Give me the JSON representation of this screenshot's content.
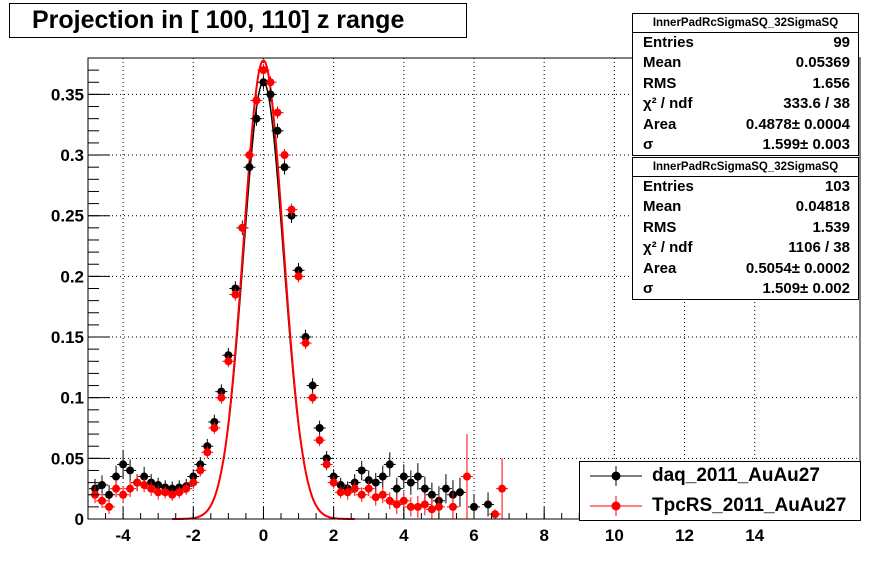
{
  "title": "Projection in [ 100, 110] z range",
  "stats_boxes": [
    {
      "header": "InnerPadRcSigmaSQ_32SigmaSQ",
      "rows": [
        {
          "key": "Entries",
          "value": "99"
        },
        {
          "key": "Mean",
          "value": "0.05369"
        },
        {
          "key": "RMS",
          "value": "1.656"
        },
        {
          "key": "χ² / ndf",
          "value": "333.6 / 38"
        },
        {
          "key": "Area",
          "value": "0.4878± 0.0004"
        },
        {
          "key": "σ",
          "value": "1.599± 0.003"
        }
      ]
    },
    {
      "header": "InnerPadRcSigmaSQ_32SigmaSQ",
      "rows": [
        {
          "key": "Entries",
          "value": "103"
        },
        {
          "key": "Mean",
          "value": "0.04818"
        },
        {
          "key": "RMS",
          "value": "1.539"
        },
        {
          "key": "χ² / ndf",
          "value": "1106 / 38"
        },
        {
          "key": "Area",
          "value": "0.5054± 0.0002"
        },
        {
          "key": "σ",
          "value": "1.509± 0.002"
        }
      ]
    }
  ],
  "chart_data": {
    "type": "scatter",
    "title": "Projection in [ 100, 110] z range",
    "xlim": [
      -5,
      17
    ],
    "ylim": [
      0,
      0.38
    ],
    "grid": true,
    "legend_position": "bottom-right",
    "x_ticks": [
      -4,
      -2,
      0,
      2,
      4,
      6,
      8,
      10,
      12,
      14
    ],
    "y_ticks": [
      0,
      0.05,
      0.1,
      0.15,
      0.2,
      0.25,
      0.3,
      0.35
    ],
    "y_tick_labels": [
      "0",
      "0.05",
      "0.1",
      "0.15",
      "0.2",
      "0.25",
      "0.3",
      "0.35"
    ],
    "series": [
      {
        "name": "daq_2011_AuAu27",
        "color": "#000000",
        "fit_area": 0.4878,
        "fit_sigma": 1.599,
        "points": [
          [
            -4.8,
            0.025,
            0.008
          ],
          [
            -4.6,
            0.028,
            0.008
          ],
          [
            -4.4,
            0.02,
            0.008
          ],
          [
            -4.2,
            0.035,
            0.009
          ],
          [
            -4.0,
            0.045,
            0.012
          ],
          [
            -3.8,
            0.04,
            0.009
          ],
          [
            -3.6,
            0.03,
            0.007
          ],
          [
            -3.4,
            0.035,
            0.008
          ],
          [
            -3.2,
            0.03,
            0.007
          ],
          [
            -3.0,
            0.028,
            0.006
          ],
          [
            -2.8,
            0.026,
            0.006
          ],
          [
            -2.6,
            0.025,
            0.006
          ],
          [
            -2.4,
            0.026,
            0.006
          ],
          [
            -2.2,
            0.027,
            0.006
          ],
          [
            -2.0,
            0.035,
            0.006
          ],
          [
            -1.8,
            0.045,
            0.006
          ],
          [
            -1.6,
            0.06,
            0.006
          ],
          [
            -1.4,
            0.08,
            0.006
          ],
          [
            -1.2,
            0.105,
            0.006
          ],
          [
            -1.0,
            0.135,
            0.006
          ],
          [
            -0.8,
            0.19,
            0.006
          ],
          [
            -0.6,
            0.24,
            0.006
          ],
          [
            -0.4,
            0.29,
            0.006
          ],
          [
            -0.2,
            0.33,
            0.006
          ],
          [
            0.0,
            0.36,
            0.006
          ],
          [
            0.2,
            0.35,
            0.006
          ],
          [
            0.4,
            0.32,
            0.006
          ],
          [
            0.6,
            0.29,
            0.006
          ],
          [
            0.8,
            0.25,
            0.006
          ],
          [
            1.0,
            0.205,
            0.006
          ],
          [
            1.2,
            0.15,
            0.006
          ],
          [
            1.4,
            0.11,
            0.006
          ],
          [
            1.6,
            0.075,
            0.006
          ],
          [
            1.8,
            0.05,
            0.006
          ],
          [
            2.0,
            0.035,
            0.006
          ],
          [
            2.2,
            0.028,
            0.006
          ],
          [
            2.4,
            0.025,
            0.006
          ],
          [
            2.6,
            0.03,
            0.007
          ],
          [
            2.8,
            0.04,
            0.008
          ],
          [
            3.0,
            0.032,
            0.008
          ],
          [
            3.2,
            0.03,
            0.008
          ],
          [
            3.4,
            0.035,
            0.009
          ],
          [
            3.6,
            0.045,
            0.01
          ],
          [
            3.8,
            0.025,
            0.009
          ],
          [
            4.0,
            0.035,
            0.01
          ],
          [
            4.2,
            0.03,
            0.01
          ],
          [
            4.4,
            0.035,
            0.011
          ],
          [
            4.6,
            0.025,
            0.01
          ],
          [
            4.8,
            0.02,
            0.01
          ],
          [
            5.0,
            0.015,
            0.012
          ],
          [
            5.2,
            0.025,
            0.012
          ],
          [
            5.4,
            0.02,
            0.012
          ],
          [
            5.6,
            0.022,
            0.012
          ],
          [
            6.0,
            0.01,
            0.01
          ],
          [
            6.4,
            0.012,
            0.01
          ]
        ]
      },
      {
        "name": "TpcRS_2011_AuAu27",
        "color": "#ff0000",
        "fit_area": 0.5054,
        "fit_sigma": 1.509,
        "points": [
          [
            -4.8,
            0.02,
            0.007
          ],
          [
            -4.6,
            0.015,
            0.006
          ],
          [
            -4.4,
            0.01,
            0.006
          ],
          [
            -4.2,
            0.025,
            0.007
          ],
          [
            -4.0,
            0.02,
            0.007
          ],
          [
            -3.8,
            0.025,
            0.007
          ],
          [
            -3.6,
            0.03,
            0.007
          ],
          [
            -3.4,
            0.028,
            0.006
          ],
          [
            -3.2,
            0.025,
            0.006
          ],
          [
            -3.0,
            0.022,
            0.006
          ],
          [
            -2.8,
            0.022,
            0.005
          ],
          [
            -2.6,
            0.02,
            0.005
          ],
          [
            -2.4,
            0.022,
            0.005
          ],
          [
            -2.2,
            0.025,
            0.005
          ],
          [
            -2.0,
            0.03,
            0.005
          ],
          [
            -1.8,
            0.04,
            0.005
          ],
          [
            -1.6,
            0.055,
            0.005
          ],
          [
            -1.4,
            0.075,
            0.005
          ],
          [
            -1.2,
            0.1,
            0.005
          ],
          [
            -1.0,
            0.13,
            0.005
          ],
          [
            -0.8,
            0.185,
            0.005
          ],
          [
            -0.6,
            0.24,
            0.005
          ],
          [
            -0.4,
            0.3,
            0.005
          ],
          [
            -0.2,
            0.345,
            0.005
          ],
          [
            0.0,
            0.37,
            0.005
          ],
          [
            0.2,
            0.36,
            0.005
          ],
          [
            0.4,
            0.335,
            0.005
          ],
          [
            0.6,
            0.3,
            0.005
          ],
          [
            0.8,
            0.255,
            0.005
          ],
          [
            1.0,
            0.2,
            0.005
          ],
          [
            1.2,
            0.145,
            0.005
          ],
          [
            1.4,
            0.1,
            0.005
          ],
          [
            1.6,
            0.065,
            0.005
          ],
          [
            1.8,
            0.045,
            0.005
          ],
          [
            2.0,
            0.03,
            0.005
          ],
          [
            2.2,
            0.022,
            0.005
          ],
          [
            2.4,
            0.022,
            0.006
          ],
          [
            2.6,
            0.025,
            0.006
          ],
          [
            2.8,
            0.02,
            0.006
          ],
          [
            3.0,
            0.025,
            0.006
          ],
          [
            3.2,
            0.018,
            0.007
          ],
          [
            3.4,
            0.02,
            0.007
          ],
          [
            3.6,
            0.015,
            0.007
          ],
          [
            3.8,
            0.012,
            0.008
          ],
          [
            4.0,
            0.015,
            0.008
          ],
          [
            4.2,
            0.01,
            0.008
          ],
          [
            4.4,
            0.01,
            0.009
          ],
          [
            4.6,
            0.012,
            0.009
          ],
          [
            4.8,
            0.008,
            0.01
          ],
          [
            5.0,
            0.01,
            0.01
          ],
          [
            5.4,
            0.01,
            0.012
          ],
          [
            5.8,
            0.035,
            0.035
          ],
          [
            6.6,
            0.004,
            0.004
          ],
          [
            6.8,
            0.025,
            0.025
          ]
        ]
      }
    ]
  }
}
